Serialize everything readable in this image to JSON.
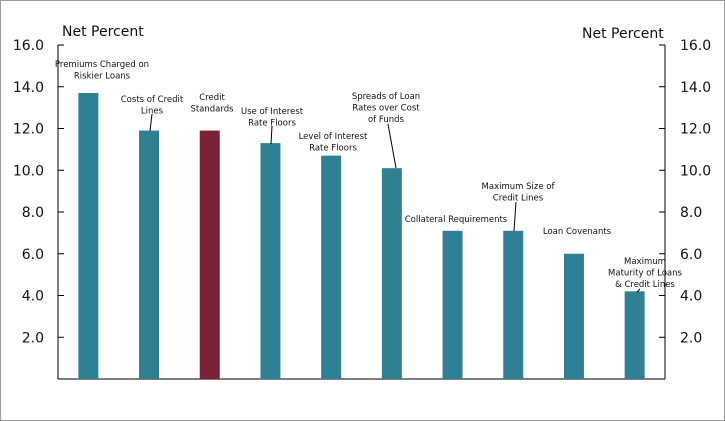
{
  "chart_data": {
    "type": "bar",
    "y_label": "Net Percent",
    "y2_label": "Net Percent",
    "categories": [
      [
        "Premiums Charged on",
        "Riskier Loans"
      ],
      [
        "Costs of Credit",
        "Lines"
      ],
      [
        "Credit",
        "Standards"
      ],
      [
        "Use of Interest",
        "Rate Floors"
      ],
      [
        "Level of Interest",
        "Rate Floors"
      ],
      [
        "Spreads of Loan",
        "Rates over Cost",
        "of Funds"
      ],
      [
        "Collateral Requirements"
      ],
      [
        "Maximum Size of",
        "Credit Lines"
      ],
      [
        "Loan Covenants"
      ],
      [
        "Maximum",
        "Maturity of Loans",
        "& Credit Lines"
      ]
    ],
    "values": [
      13.7,
      11.9,
      11.9,
      11.3,
      10.7,
      10.1,
      7.1,
      7.1,
      6.0,
      4.2
    ],
    "colors": [
      "#2f8095",
      "#2f8095",
      "#7a2238",
      "#2f8095",
      "#2f8095",
      "#2f8095",
      "#2f8095",
      "#2f8095",
      "#2f8095",
      "#2f8095"
    ],
    "ylim": [
      0,
      16
    ],
    "yticks": [
      {
        "value": 2,
        "label": "2.0"
      },
      {
        "value": 4,
        "label": "4.0"
      },
      {
        "value": 6,
        "label": "6.0"
      },
      {
        "value": 8,
        "label": "8.0"
      },
      {
        "value": 10,
        "label": "10.0"
      },
      {
        "value": 12,
        "label": "12.0"
      },
      {
        "value": 14,
        "label": "14.0"
      },
      {
        "value": 16,
        "label": "16.0"
      }
    ],
    "y2lim": [
      0,
      16
    ],
    "y2ticks": [
      {
        "value": 2,
        "label": "2.0"
      },
      {
        "value": 4,
        "label": "4.0"
      },
      {
        "value": 6,
        "label": "6.0"
      },
      {
        "value": 8,
        "label": "8.0"
      },
      {
        "value": 10,
        "label": "10.0"
      },
      {
        "value": 12,
        "label": "12.0"
      },
      {
        "value": 14,
        "label": "14.0"
      },
      {
        "value": 16,
        "label": "16.0"
      }
    ]
  }
}
